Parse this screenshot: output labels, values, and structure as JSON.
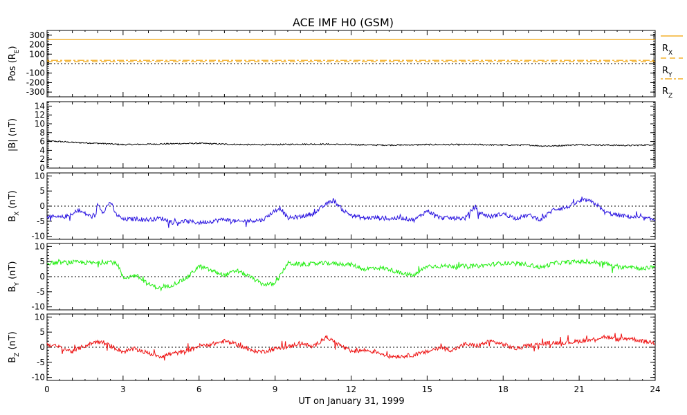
{
  "title": "ACE IMF H0 (GSM)",
  "xlabel": "UT on January 31, 1999",
  "x_tick_labels": [
    "0",
    "3",
    "6",
    "9",
    "12",
    "15",
    "18",
    "21",
    "24"
  ],
  "colors": {
    "black": "#000000",
    "blue": "#2a14e0",
    "green": "#22ee11",
    "red": "#ee1111",
    "orange": "#f0a000"
  },
  "chart_data": [
    {
      "type": "line",
      "panel": "position",
      "ylabel": "Pos (R_E)",
      "ylim": [
        -350,
        350
      ],
      "yticks": [
        300,
        200,
        100,
        0,
        -100,
        -200,
        -300
      ],
      "xlim": [
        0,
        24
      ],
      "series": [
        {
          "name": "R_X",
          "x": [
            0,
            24
          ],
          "values": [
            254,
            254
          ]
        },
        {
          "name": "R_Y",
          "x": [
            0,
            24
          ],
          "values": [
            20,
            20
          ]
        },
        {
          "name": "R_Z",
          "x": [
            0,
            24
          ],
          "values": [
            35,
            35
          ]
        }
      ],
      "legend": [
        "R_X",
        "R_Y",
        "R_Z"
      ],
      "zero_line": true
    },
    {
      "type": "line",
      "panel": "Bmag",
      "ylabel": "|B| (nT)",
      "ylim": [
        0,
        15
      ],
      "yticks": [
        14,
        12,
        10,
        8,
        6,
        4,
        2,
        0
      ],
      "xlim": [
        0,
        24
      ],
      "series": [
        {
          "x": [
            0,
            0.5,
            1,
            1.5,
            2,
            3,
            4,
            5,
            6,
            7,
            8,
            9,
            10,
            11,
            12,
            13,
            14,
            15,
            16,
            17,
            18,
            19,
            19.5,
            20,
            21,
            22,
            23,
            24
          ],
          "values": [
            6.1,
            6.0,
            5.8,
            5.7,
            5.6,
            5.3,
            5.4,
            5.5,
            5.6,
            5.4,
            5.3,
            5.3,
            5.4,
            5.4,
            5.3,
            5.2,
            5.2,
            5.3,
            5.3,
            5.3,
            5.2,
            5.2,
            5.0,
            5.0,
            5.3,
            5.2,
            5.1,
            5.3
          ]
        }
      ]
    },
    {
      "type": "line",
      "panel": "Bx",
      "ylabel": "B_X (nT)",
      "ylim": [
        -11,
        11
      ],
      "yticks": [
        10,
        5,
        0,
        -5,
        -10
      ],
      "xlim": [
        0,
        24
      ],
      "series": [
        {
          "x": [
            0,
            0.5,
            1,
            1.2,
            1.5,
            1.9,
            2,
            2.2,
            2.5,
            2.7,
            3,
            3.5,
            4,
            4.5,
            5,
            5.5,
            6,
            6.5,
            7,
            7.5,
            8,
            8.5,
            9,
            9.2,
            9.5,
            10,
            10.5,
            11,
            11.3,
            11.7,
            12,
            12.5,
            13,
            13.5,
            14,
            14.5,
            15,
            15.5,
            16,
            16.5,
            16.9,
            17,
            17.5,
            18,
            18.5,
            19,
            19.5,
            20,
            20.5,
            21,
            21.3,
            21.7,
            22,
            22.5,
            23,
            23.5,
            24
          ],
          "values": [
            -3.5,
            -3.8,
            -3.0,
            -1.2,
            -2.5,
            -4.0,
            1.0,
            -2.0,
            1.5,
            -2.5,
            -4.5,
            -4.2,
            -4.5,
            -4.0,
            -5.5,
            -5.0,
            -5.5,
            -5.0,
            -4.3,
            -5.2,
            -4.8,
            -4.6,
            -1.5,
            -0.5,
            -4.0,
            -3.5,
            -2.5,
            0.5,
            2.0,
            -1.5,
            -3.0,
            -4.0,
            -3.8,
            -4.2,
            -3.9,
            -4.6,
            -1.5,
            -3.8,
            -4.0,
            -4.0,
            0.0,
            -2.0,
            -3.5,
            -2.5,
            -4.0,
            -3.0,
            -4.5,
            -1.0,
            -0.5,
            1.5,
            2.0,
            0.5,
            -2.0,
            -3.0,
            -3.5,
            -4.0,
            -4.5
          ]
        }
      ],
      "zero_line": true
    },
    {
      "type": "line",
      "panel": "By",
      "ylabel": "B_Y (nT)",
      "ylim": [
        -11,
        11
      ],
      "yticks": [
        10,
        5,
        0,
        -5,
        -10
      ],
      "xlim": [
        0,
        24
      ],
      "series": [
        {
          "x": [
            0,
            1,
            2,
            2.5,
            2.8,
            3,
            3.5,
            4,
            4.5,
            5,
            5.5,
            6,
            6.5,
            7,
            7.5,
            8,
            8.5,
            9,
            9.5,
            10,
            11,
            12,
            12.5,
            13,
            13.5,
            14,
            14.5,
            15,
            16,
            17,
            18,
            19,
            19.5,
            20,
            21,
            22,
            22.5,
            23,
            23.5,
            24
          ],
          "values": [
            4.5,
            4.8,
            4.5,
            5.0,
            4.0,
            -0.5,
            0.5,
            -2.5,
            -4.0,
            -2.5,
            -0.5,
            3.5,
            2.0,
            0.5,
            2.0,
            0.0,
            -2.5,
            -2.5,
            4.5,
            4.0,
            4.5,
            4.0,
            2.5,
            3.0,
            2.5,
            1.0,
            0.5,
            3.5,
            3.5,
            3.5,
            4.5,
            4.0,
            3.0,
            4.5,
            5.0,
            4.5,
            3.0,
            3.5,
            2.5,
            3.5
          ]
        }
      ],
      "zero_line": true
    },
    {
      "type": "line",
      "panel": "Bz",
      "ylabel": "B_Z (nT)",
      "ylim": [
        -11,
        11
      ],
      "yticks": [
        10,
        5,
        0,
        -5,
        -10
      ],
      "xlim": [
        0,
        24
      ],
      "series": [
        {
          "x": [
            0,
            0.5,
            1,
            1.5,
            2,
            2.5,
            3,
            3.5,
            4,
            4.5,
            5,
            5.5,
            6,
            6.5,
            7,
            7.5,
            8,
            8.5,
            9,
            9.5,
            10,
            10.5,
            11,
            11.5,
            12,
            12.5,
            13,
            13.5,
            14,
            14.5,
            15,
            15.5,
            16,
            16.5,
            17,
            17.5,
            18,
            18.5,
            19,
            19.5,
            20,
            20.5,
            21,
            21.5,
            22,
            22.5,
            23,
            23.5,
            24
          ],
          "values": [
            1.0,
            0.0,
            -1.5,
            0.5,
            2.0,
            0.5,
            -1.5,
            -0.5,
            -2.0,
            -3.0,
            -2.0,
            -1.5,
            0.5,
            1.0,
            2.0,
            1.0,
            -1.0,
            -1.5,
            -0.5,
            0.0,
            1.5,
            0.0,
            3.5,
            1.0,
            -1.5,
            -1.0,
            -1.5,
            -3.0,
            -3.0,
            -2.5,
            -1.5,
            0.0,
            -1.0,
            1.0,
            0.5,
            2.0,
            1.0,
            -0.5,
            0.5,
            1.0,
            1.5,
            1.5,
            2.0,
            2.5,
            3.5,
            2.5,
            3.0,
            2.0,
            1.5
          ]
        }
      ],
      "zero_line": true
    }
  ]
}
